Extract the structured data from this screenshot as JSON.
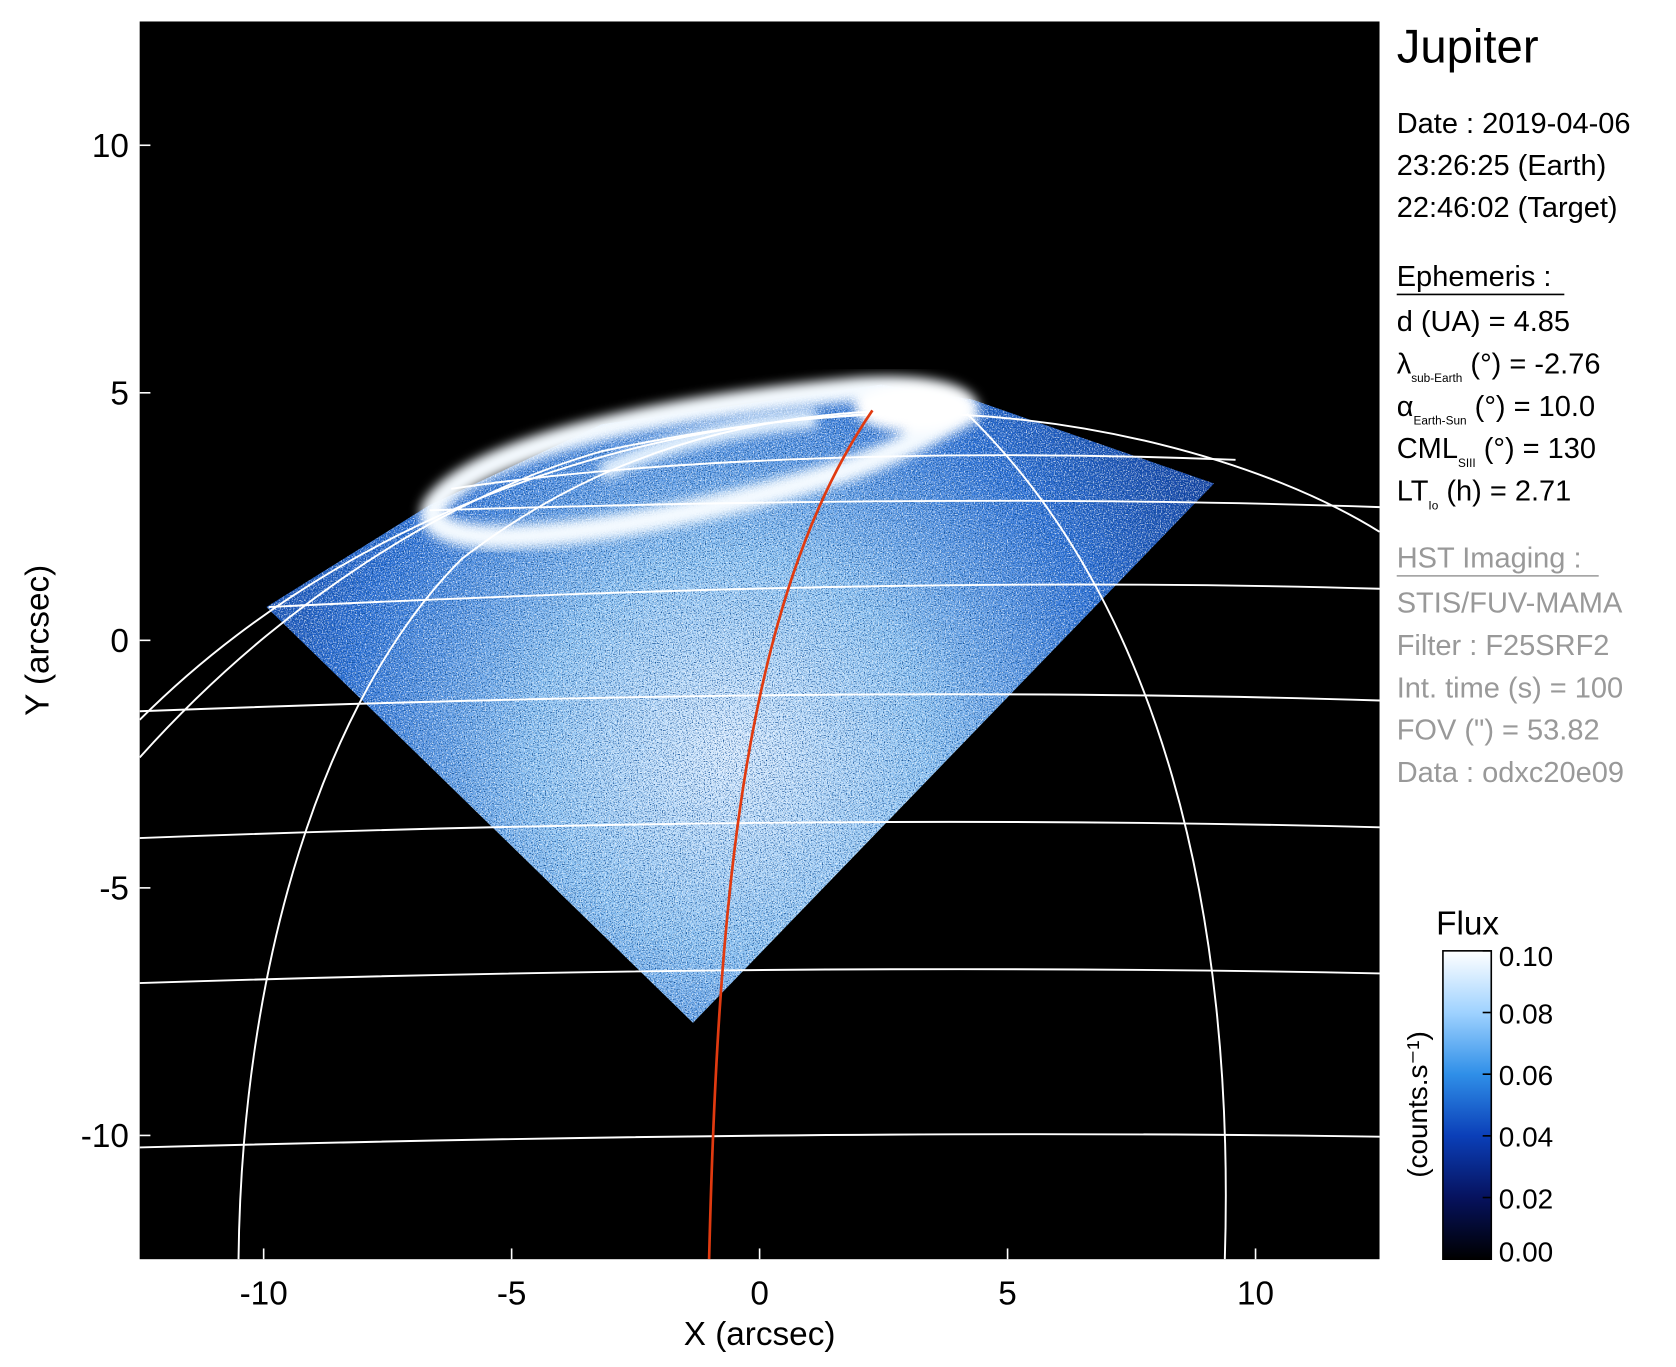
{
  "chart_data": {
    "type": "image",
    "xlabel": "X (arcsec)",
    "ylabel": "Y (arcsec)",
    "xlim": [
      -12.5,
      12.5
    ],
    "ylim": [
      -12.5,
      12.5
    ],
    "xticks": [
      -10,
      -5,
      0,
      5,
      10
    ],
    "yticks": [
      -10,
      -5,
      0,
      5,
      10
    ],
    "info": {
      "title": "Jupiter",
      "date_lines": [
        "Date : 2019-04-06",
        "23:26:25 (Earth)",
        "22:46:02 (Target)"
      ],
      "ephemeris_title": "Ephemeris :",
      "ephemeris": [
        {
          "name": "d (UA)",
          "rest": "    = 4.85"
        },
        {
          "name": "λ",
          "sub": "sub-Earth",
          "rest": " (°) = -2.76"
        },
        {
          "name": "α",
          "sub": "Earth-Sun",
          "rest": " (°) = 10.0"
        },
        {
          "name": "CML",
          "sub": "SIII",
          "rest": " (°) = 130"
        },
        {
          "name": "LT",
          "sub": "Io",
          "rest": " (h) = 2.71"
        }
      ],
      "hst_title": "HST Imaging :",
      "hst_lines": [
        "STIS/FUV-MAMA",
        "Filter : F25SRF2",
        "Int. time (s) = 100",
        "FOV (\") = 53.82",
        "Data : odxc20e09"
      ]
    },
    "colorbar": {
      "title": "Flux",
      "label": "(counts.s⁻¹)",
      "clim": [
        0,
        0.1
      ],
      "colors": [
        "#000000",
        "#06125e",
        "#0b3fb8",
        "#2f8fe8",
        "#9fd2ff",
        "#ffffff"
      ],
      "ticks": [
        {
          "value": 0,
          "label": "0.00"
        },
        {
          "value": 0.02,
          "label": "0.02"
        },
        {
          "value": 0.04,
          "label": "0.04"
        },
        {
          "value": 0.06,
          "label": "0.06"
        },
        {
          "value": 0.08,
          "label": "0.08"
        },
        {
          "value": 0.1,
          "label": "0.10"
        }
      ]
    }
  }
}
